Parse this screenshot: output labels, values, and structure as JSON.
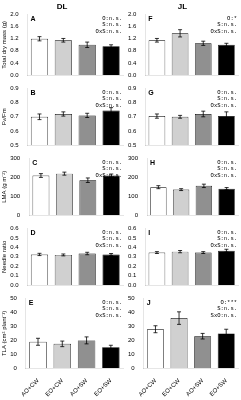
{
  "chart_data": [
    {
      "type": "bar",
      "title": "DL",
      "ylabel": "Total dry mass (g)",
      "categories": [
        null,
        null,
        null,
        null
      ],
      "values": [
        1.2,
        1.15,
        1.0,
        0.95
      ],
      "errors": [
        0.07,
        0.06,
        0.09,
        0.05
      ],
      "colors": [
        "white",
        "#d0d0d0",
        "#909090",
        "black"
      ],
      "ylim": [
        0,
        2
      ],
      "yticks": [
        {
          "value": 0,
          "label": "0.0"
        },
        0.4,
        0.8,
        1.2,
        1.6,
        {
          "value": 2,
          "label": "2.0"
        }
      ],
      "annotations": [
        "A",
        "O:n.s.\nS:n.s.\nOxS:n.s."
      ],
      "grid": false
    },
    {
      "type": "bar",
      "title": "JL",
      "categories": [
        null,
        null,
        null,
        null
      ],
      "values": [
        1.15,
        1.38,
        1.05,
        1.0
      ],
      "errors": [
        0.06,
        0.12,
        0.07,
        0.05
      ],
      "colors": [
        "white",
        "#d0d0d0",
        "#909090",
        "black"
      ],
      "ylim": [
        0,
        2
      ],
      "yticks": [
        {
          "value": 0,
          "label": "0.0"
        },
        0.4,
        0.8,
        1.2,
        1.6,
        {
          "value": 2,
          "label": "2.0"
        }
      ],
      "annotations": [
        "F",
        "O:*\nS:n.s.\nOxS:n.s."
      ],
      "grid": false
    },
    {
      "type": "bar",
      "ylabel": "Fv/Fm",
      "categories": [
        null,
        null,
        null,
        null
      ],
      "values": [
        0.7,
        0.72,
        0.71,
        0.745
      ],
      "errors": [
        0.02,
        0.015,
        0.015,
        0.02
      ],
      "colors": [
        "white",
        "#d0d0d0",
        "#909090",
        "black"
      ],
      "ylim": [
        0.5,
        0.9
      ],
      "yticks": [
        0.5,
        0.6,
        0.7,
        0.8,
        0.9
      ],
      "annotations": [
        "B",
        "O:n.s.\nS:n.s.\nOxS:n.s."
      ],
      "grid": false
    },
    {
      "type": "bar",
      "categories": [
        null,
        null,
        null,
        null
      ],
      "values": [
        0.705,
        0.7,
        0.72,
        0.705
      ],
      "errors": [
        0.015,
        0.01,
        0.02,
        0.03
      ],
      "colors": [
        "white",
        "#d0d0d0",
        "#909090",
        "black"
      ],
      "ylim": [
        0.5,
        0.9
      ],
      "yticks": [
        0.5,
        0.6,
        0.7,
        0.8,
        0.9
      ],
      "annotations": [
        "G",
        "O:n.s.\nS:n.s.\nOxS:n.s."
      ],
      "grid": false
    },
    {
      "type": "bar",
      "ylabel": "LMA (g m⁻²)",
      "categories": [
        null,
        null,
        null,
        null
      ],
      "values": [
        210,
        220,
        185,
        210
      ],
      "errors": [
        10,
        8,
        12,
        8
      ],
      "colors": [
        "white",
        "#d0d0d0",
        "#909090",
        "black"
      ],
      "ylim": [
        0,
        300
      ],
      "yticks": [
        0,
        100,
        200,
        300
      ],
      "annotations": [
        "C",
        "O:n.s.\nS:n.s.\nOxS:n.s."
      ],
      "grid": false
    },
    {
      "type": "bar",
      "categories": [
        null,
        null,
        null,
        null
      ],
      "values": [
        148,
        135,
        155,
        140
      ],
      "errors": [
        8,
        5,
        9,
        6
      ],
      "colors": [
        "white",
        "#d0d0d0",
        "#909090",
        "black"
      ],
      "ylim": [
        0,
        300
      ],
      "yticks": [
        0,
        100,
        200,
        300
      ],
      "annotations": [
        "H",
        "O:n.s.\nS:n.s.\nOxS:n.s."
      ],
      "grid": false
    },
    {
      "type": "bar",
      "ylabel": "Needle ratio",
      "categories": [
        null,
        null,
        null,
        null
      ],
      "values": [
        0.325,
        0.32,
        0.335,
        0.325
      ],
      "errors": [
        0.012,
        0.01,
        0.013,
        0.01
      ],
      "colors": [
        "white",
        "#d0d0d0",
        "#909090",
        "black"
      ],
      "ylim": [
        0,
        0.6
      ],
      "yticks": [
        {
          "value": 0,
          "label": "0.0"
        },
        0.1,
        0.2,
        0.3,
        0.4,
        0.5,
        0.6
      ],
      "annotations": [
        "D",
        "O:n.s.\nS:n.s.\nOxS:n.s."
      ],
      "grid": false
    },
    {
      "type": "bar",
      "categories": [
        null,
        null,
        null,
        null
      ],
      "values": [
        0.345,
        0.355,
        0.345,
        0.365
      ],
      "errors": [
        0.01,
        0.012,
        0.01,
        0.015
      ],
      "colors": [
        "white",
        "#d0d0d0",
        "#909090",
        "black"
      ],
      "ylim": [
        0,
        0.6
      ],
      "yticks": [
        {
          "value": 0,
          "label": "0.0"
        },
        0.1,
        0.2,
        0.3,
        0.4,
        0.5,
        0.6
      ],
      "annotations": [
        "I",
        "O:n.s.\nS:n.s.\nOxS:n.s."
      ],
      "grid": false
    },
    {
      "type": "bar",
      "ylabel": "TLA (cm² plant⁻¹)",
      "categories": [
        "AO+CW",
        "EO+CW",
        "AO+SW",
        "EO+SW"
      ],
      "values": [
        19.0,
        17.5,
        20.0,
        15.0
      ],
      "errors": [
        2.5,
        2.0,
        2.5,
        1.5
      ],
      "colors": [
        "white",
        "#d0d0d0",
        "#909090",
        "black"
      ],
      "ylim": [
        0,
        50
      ],
      "yticks": [
        0,
        10,
        20,
        30,
        40,
        50
      ],
      "annotations": [
        "E",
        "O:n.s.\nS:n.s.\nOxS:n.s."
      ],
      "grid": false
    },
    {
      "type": "bar",
      "categories": [
        "AO+CW",
        "EO+CW",
        "AO+SW",
        "EO+SW"
      ],
      "values": [
        28.0,
        36.0,
        23.0,
        25.0
      ],
      "errors": [
        2.5,
        4.5,
        2.0,
        3.0
      ],
      "colors": [
        "white",
        "#d0d0d0",
        "#909090",
        "black"
      ],
      "ylim": [
        0,
        50
      ],
      "yticks": [
        0,
        10,
        20,
        30,
        40,
        50
      ],
      "annotations": [
        "J",
        "O:***\nS:n.s.\nSxO:n.s."
      ],
      "grid": false
    }
  ]
}
